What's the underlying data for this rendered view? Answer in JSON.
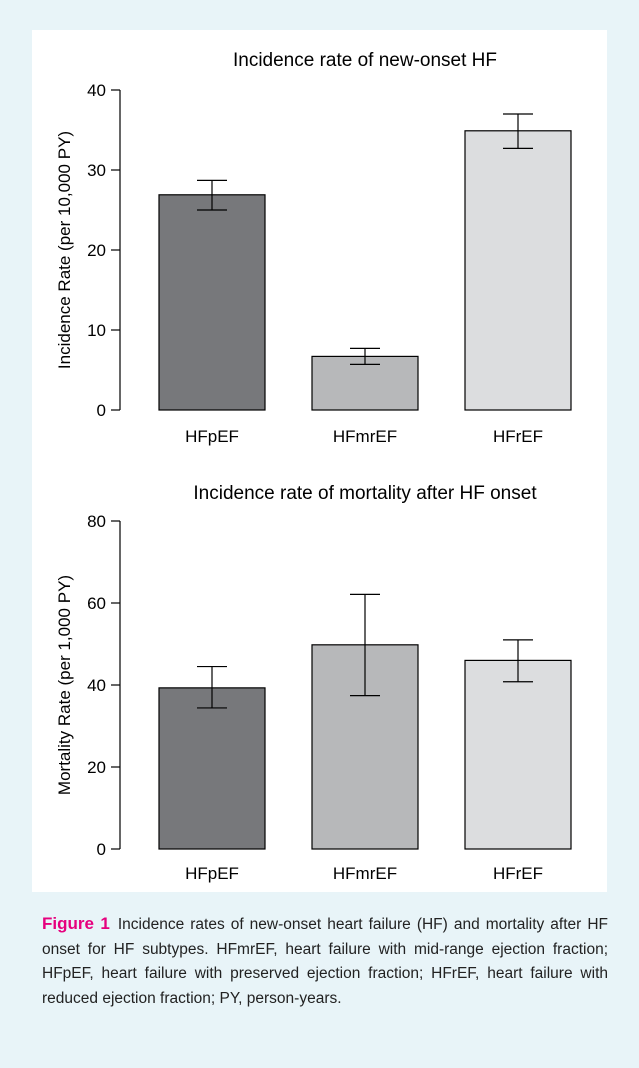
{
  "chart_data": [
    {
      "type": "bar",
      "title": "Incidence rate of new-onset HF",
      "ylabel": "Incidence Rate (per 10,000 PY)",
      "xlabel": "",
      "categories": [
        "HFpEF",
        "HFmrEF",
        "HFrEF"
      ],
      "values": [
        26.9,
        6.7,
        34.9
      ],
      "error_low": [
        25.0,
        5.7,
        32.7
      ],
      "error_high": [
        28.7,
        7.7,
        37.0
      ],
      "ylim": [
        0,
        40
      ],
      "yticks": [
        0,
        10,
        20,
        30,
        40
      ],
      "bar_colors": [
        "#77787b",
        "#b7b8ba",
        "#dcdddf"
      ],
      "grid": false
    },
    {
      "type": "bar",
      "title": "Incidence rate of mortality after HF onset",
      "ylabel": "Mortality Rate (per 1,000 PY)",
      "xlabel": "",
      "categories": [
        "HFpEF",
        "HFmrEF",
        "HFrEF"
      ],
      "values": [
        39.3,
        49.8,
        46.0
      ],
      "error_low": [
        34.4,
        37.4,
        40.8
      ],
      "error_high": [
        44.5,
        62.1,
        51.0
      ],
      "ylim": [
        0,
        80
      ],
      "yticks": [
        0,
        20,
        40,
        60,
        80
      ],
      "bar_colors": [
        "#77787b",
        "#b7b8ba",
        "#dcdddf"
      ],
      "grid": false
    }
  ],
  "caption": {
    "label": "Figure 1",
    "text": "Incidence rates of new-onset heart failure (HF) and mortality after HF onset for HF subtypes. HFmrEF, heart failure with mid-range ejection fraction; HFpEF, heart failure with preserved ejection fraction; HFrEF, heart failure with reduced ejection fraction; PY, person-years."
  },
  "colors": {
    "panel_background": "#e8f4f8",
    "caption_label": "#e6007e"
  }
}
